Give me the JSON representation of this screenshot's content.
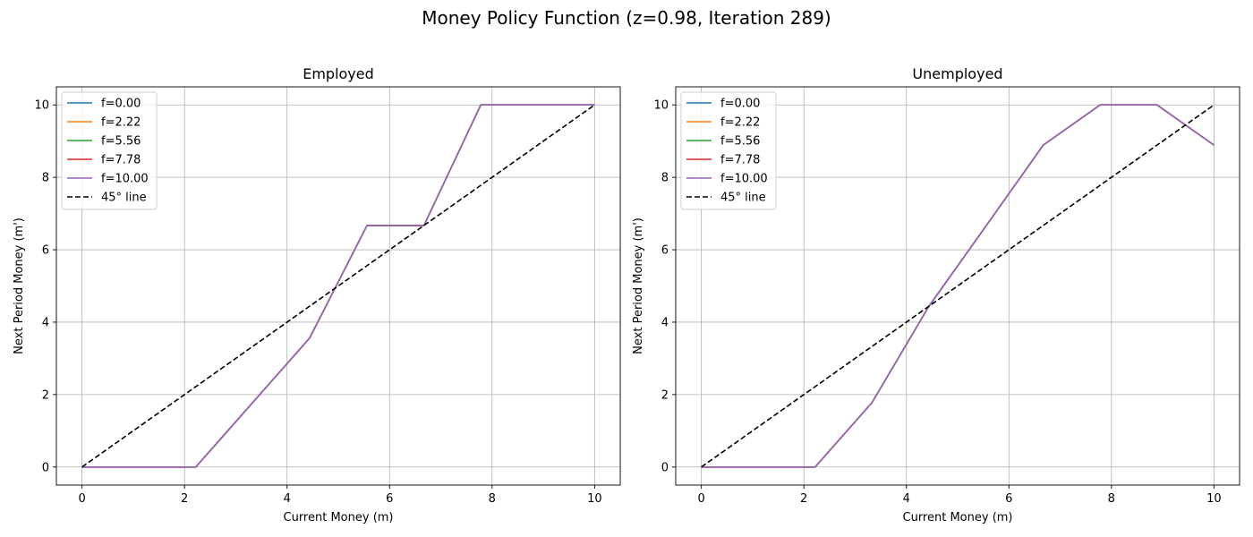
{
  "figure": {
    "title": "Money Policy Function (z=0.98, Iteration 289)"
  },
  "colors": {
    "f=0.00": "#1f77b4",
    "f=2.22": "#ff7f0e",
    "f=5.56": "#2ca02c",
    "f=7.78": "#d62728",
    "f=10.00": "#9467bd",
    "45° line": "#000000",
    "grid": "#b0b0b0"
  },
  "chart_data": [
    {
      "type": "line",
      "title": "Employed",
      "xlabel": "Current Money (m)",
      "ylabel": "Next Period Money (m')",
      "xlim": [
        -0.5,
        10.5
      ],
      "ylim": [
        -0.5,
        10.5
      ],
      "xticks": [
        0,
        2,
        4,
        6,
        8,
        10
      ],
      "yticks": [
        0,
        2,
        4,
        6,
        8,
        10
      ],
      "grid": true,
      "legend_position": "upper left",
      "series": [
        {
          "name": "f=0.00",
          "x": [
            0,
            1.11,
            2.22,
            3.33,
            4.44,
            5.56,
            6.67,
            7.78,
            8.89,
            10
          ],
          "y": [
            0,
            0,
            0,
            1.78,
            3.56,
            6.67,
            6.67,
            10,
            10,
            10
          ]
        },
        {
          "name": "f=2.22",
          "x": [
            0,
            1.11,
            2.22,
            3.33,
            4.44,
            5.56,
            6.67,
            7.78,
            8.89,
            10
          ],
          "y": [
            0,
            0,
            0,
            1.78,
            3.56,
            6.67,
            6.67,
            10,
            10,
            10
          ]
        },
        {
          "name": "f=5.56",
          "x": [
            0,
            1.11,
            2.22,
            3.33,
            4.44,
            5.56,
            6.67,
            7.78,
            8.89,
            10
          ],
          "y": [
            0,
            0,
            0,
            1.78,
            3.56,
            6.67,
            6.67,
            10,
            10,
            10
          ]
        },
        {
          "name": "f=7.78",
          "x": [
            0,
            1.11,
            2.22,
            3.33,
            4.44,
            5.56,
            6.67,
            7.78,
            8.89,
            10
          ],
          "y": [
            0,
            0,
            0,
            1.78,
            3.56,
            6.67,
            6.67,
            10,
            10,
            10
          ]
        },
        {
          "name": "f=10.00",
          "x": [
            0,
            1.11,
            2.22,
            3.33,
            4.44,
            5.56,
            6.67,
            7.78,
            8.89,
            10
          ],
          "y": [
            0,
            0,
            0,
            1.78,
            3.56,
            6.67,
            6.67,
            10,
            10,
            10
          ]
        },
        {
          "name": "45° line",
          "style": "dashed",
          "x": [
            0,
            10
          ],
          "y": [
            0,
            10
          ]
        }
      ]
    },
    {
      "type": "line",
      "title": "Unemployed",
      "xlabel": "Current Money (m)",
      "ylabel": "Next Period Money (m')",
      "xlim": [
        -0.5,
        10.5
      ],
      "ylim": [
        -0.5,
        10.5
      ],
      "xticks": [
        0,
        2,
        4,
        6,
        8,
        10
      ],
      "yticks": [
        0,
        2,
        4,
        6,
        8,
        10
      ],
      "grid": true,
      "legend_position": "upper left",
      "series": [
        {
          "name": "f=0.00",
          "x": [
            0,
            1.11,
            2.22,
            3.33,
            4.44,
            5.56,
            6.67,
            7.78,
            8.89,
            10
          ],
          "y": [
            0,
            0,
            0,
            1.78,
            4.44,
            6.67,
            8.89,
            10,
            10,
            8.89
          ]
        },
        {
          "name": "f=2.22",
          "x": [
            0,
            1.11,
            2.22,
            3.33,
            4.44,
            5.56,
            6.67,
            7.78,
            8.89,
            10
          ],
          "y": [
            0,
            0,
            0,
            1.78,
            4.44,
            6.67,
            8.89,
            10,
            10,
            8.89
          ]
        },
        {
          "name": "f=5.56",
          "x": [
            0,
            1.11,
            2.22,
            3.33,
            4.44,
            5.56,
            6.67,
            7.78,
            8.89,
            10
          ],
          "y": [
            0,
            0,
            0,
            1.78,
            4.44,
            6.67,
            8.89,
            10,
            10,
            8.89
          ]
        },
        {
          "name": "f=7.78",
          "x": [
            0,
            1.11,
            2.22,
            3.33,
            4.44,
            5.56,
            6.67,
            7.78,
            8.89,
            10
          ],
          "y": [
            0,
            0,
            0,
            1.78,
            4.44,
            6.67,
            8.89,
            10,
            10,
            8.89
          ]
        },
        {
          "name": "f=10.00",
          "x": [
            0,
            1.11,
            2.22,
            3.33,
            4.44,
            5.56,
            6.67,
            7.78,
            8.89,
            10
          ],
          "y": [
            0,
            0,
            0,
            1.78,
            4.44,
            6.67,
            8.89,
            10,
            10,
            8.89
          ]
        },
        {
          "name": "45° line",
          "style": "dashed",
          "x": [
            0,
            10
          ],
          "y": [
            0,
            10
          ]
        }
      ]
    }
  ]
}
